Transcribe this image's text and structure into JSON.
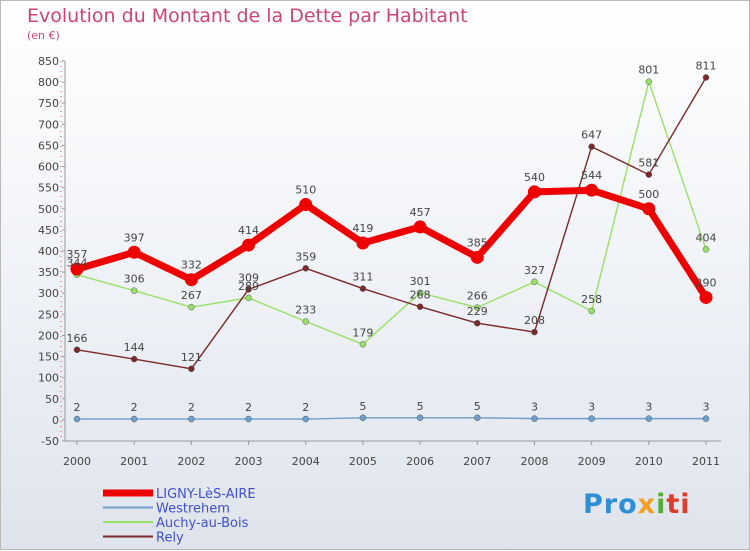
{
  "chart_data": {
    "type": "line",
    "title": "Evolution du Montant de la Dette par Habitant",
    "subtitle": "(en €)",
    "xlabel": "",
    "ylabel": "",
    "ylim": [
      -50,
      850
    ],
    "yticks": [
      -50,
      0,
      50,
      100,
      150,
      200,
      250,
      300,
      350,
      400,
      450,
      500,
      550,
      600,
      650,
      700,
      750,
      800,
      850
    ],
    "categories": [
      "2000",
      "2001",
      "2002",
      "2003",
      "2004",
      "2005",
      "2006",
      "2007",
      "2008",
      "2009",
      "2010",
      "2011"
    ],
    "grid": false,
    "legend_position": "bottom-left",
    "series": [
      {
        "name": "LIGNY-LèS-AIRE",
        "color": "#ee0000",
        "emphasis": true,
        "values": [
          357,
          397,
          332,
          414,
          510,
          419,
          457,
          385,
          540,
          544,
          500,
          290
        ]
      },
      {
        "name": "Westrehem",
        "color": "#6f9fcf",
        "emphasis": false,
        "values": [
          2,
          2,
          2,
          2,
          2,
          5,
          5,
          5,
          3,
          3,
          3,
          3
        ]
      },
      {
        "name": "Auchy-au-Bois",
        "color": "#99e066",
        "emphasis": false,
        "values": [
          344,
          306,
          267,
          289,
          233,
          179,
          301,
          266,
          327,
          258,
          801,
          404
        ]
      },
      {
        "name": "Rely",
        "color": "#7a2a2a",
        "emphasis": false,
        "values": [
          166,
          144,
          121,
          309,
          359,
          311,
          268,
          229,
          208,
          647,
          581,
          811
        ]
      }
    ]
  },
  "logo": {
    "parts": [
      "Pro",
      "x",
      "i",
      "ti"
    ]
  }
}
